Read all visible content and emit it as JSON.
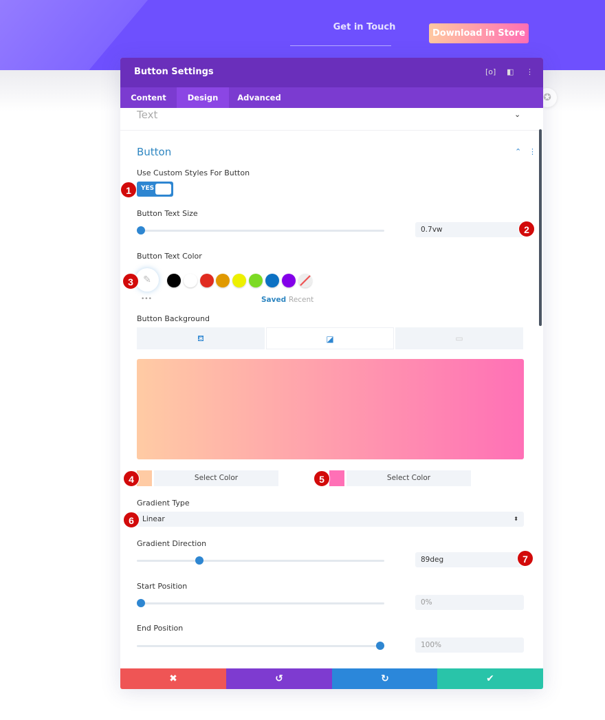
{
  "hero": {
    "nav_link": "Get in Touch",
    "store_button": "Download in Store"
  },
  "panel": {
    "title": "Button Settings",
    "header_icons": [
      "focus-icon",
      "split-view-icon",
      "more-vertical-icon"
    ],
    "tabs": [
      {
        "label": "Content"
      },
      {
        "label": "Design",
        "active": true
      },
      {
        "label": "Advanced"
      }
    ],
    "collapsed_section": "Text",
    "section": "Button",
    "custom_styles": {
      "label": "Use Custom Styles For Button",
      "value": "YES"
    },
    "text_size": {
      "label": "Button Text Size",
      "value": "0.7vw",
      "slider_percent": 0
    },
    "text_color": {
      "label": "Button Text Color",
      "swatches": [
        "#000000",
        "#ffffff",
        "#e02b20",
        "#e09900",
        "#edf000",
        "#7cda24",
        "#0c71c3",
        "#8300e9"
      ],
      "saved": "Saved",
      "recent": "Recent",
      "more": "•••"
    },
    "background": {
      "label": "Button Background",
      "tabs": [
        "color-fill-icon",
        "gradient-icon",
        "image-icon"
      ],
      "gradient_start": "#ffcba4",
      "gradient_end": "#ff70b6",
      "select_color_1": "Select Color",
      "select_color_2": "Select Color"
    },
    "gradient_type": {
      "label": "Gradient Type",
      "value": "Linear"
    },
    "gradient_direction": {
      "label": "Gradient Direction",
      "value": "89deg",
      "slider_percent": 25
    },
    "start_position": {
      "label": "Start Position",
      "value": "0%",
      "slider_percent": 0
    },
    "end_position": {
      "label": "End Position",
      "value": "100%",
      "slider_percent": 100
    },
    "footer": {
      "cancel": "✖",
      "undo": "↺",
      "redo": "↻",
      "save": "✔"
    }
  },
  "markers": [
    "1",
    "2",
    "3",
    "4",
    "5",
    "6",
    "7"
  ],
  "colors": {
    "hero": "#6e50fe",
    "header": "#6a2fbb",
    "tabs": "#7b3bd0",
    "accent": "#2e86d1",
    "cancel": "#ef5555",
    "undo": "#7e3bd0",
    "redo": "#2b87da",
    "save": "#29c4a9"
  }
}
